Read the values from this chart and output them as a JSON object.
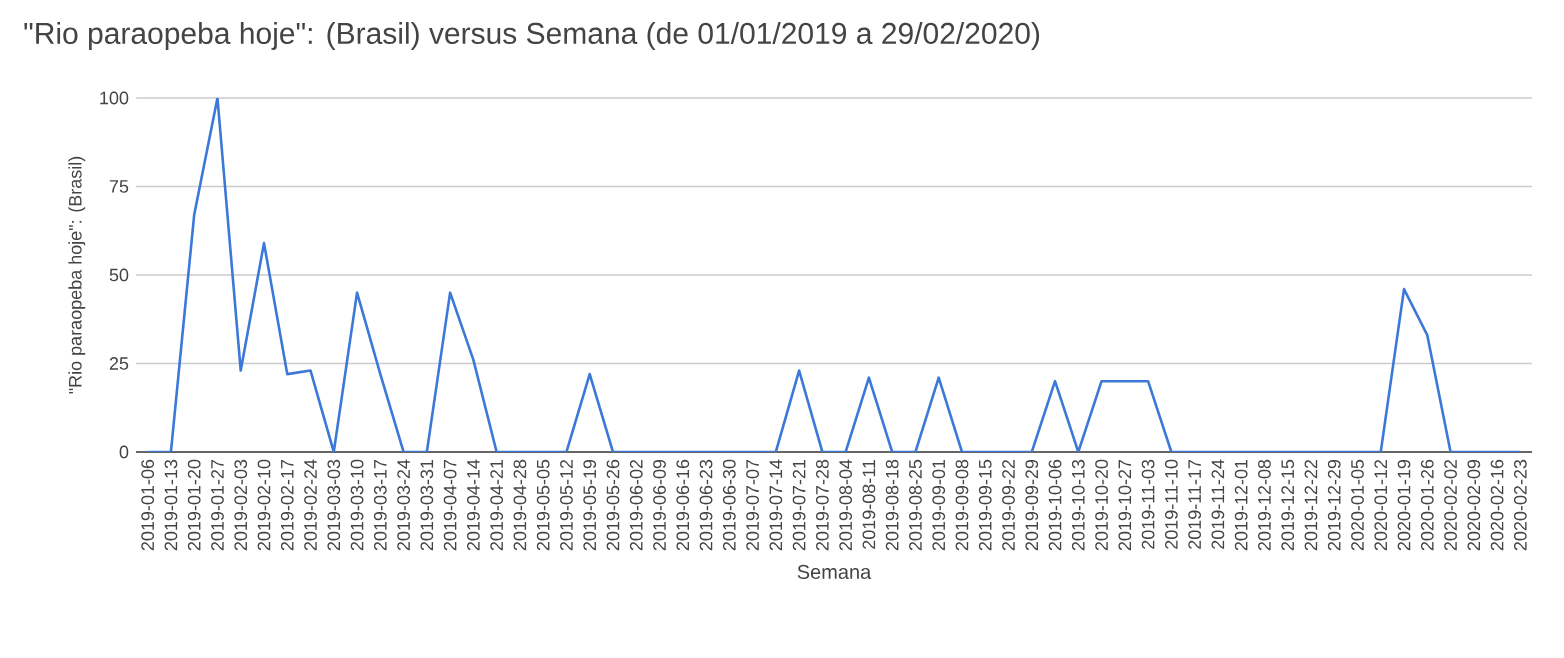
{
  "chart_data": {
    "type": "line",
    "title": "\"Rio paraopeba hoje\": (Brasil) versus Semana (de 01/01/2019 a 29/02/2020)",
    "xlabel": "Semana",
    "ylabel": "\"Rio paraopeba hoje\": (Brasil)",
    "categories": [
      "2019-01-06",
      "2019-01-13",
      "2019-01-20",
      "2019-01-27",
      "2019-02-03",
      "2019-02-10",
      "2019-02-17",
      "2019-02-24",
      "2019-03-03",
      "2019-03-10",
      "2019-03-17",
      "2019-03-24",
      "2019-03-31",
      "2019-04-07",
      "2019-04-14",
      "2019-04-21",
      "2019-04-28",
      "2019-05-05",
      "2019-05-12",
      "2019-05-19",
      "2019-05-26",
      "2019-06-02",
      "2019-06-09",
      "2019-06-16",
      "2019-06-23",
      "2019-06-30",
      "2019-07-07",
      "2019-07-14",
      "2019-07-21",
      "2019-07-28",
      "2019-08-04",
      "2019-08-11",
      "2019-08-18",
      "2019-08-25",
      "2019-09-01",
      "2019-09-08",
      "2019-09-15",
      "2019-09-22",
      "2019-09-29",
      "2019-10-06",
      "2019-10-13",
      "2019-10-20",
      "2019-10-27",
      "2019-11-03",
      "2019-11-10",
      "2019-11-17",
      "2019-11-24",
      "2019-12-01",
      "2019-12-08",
      "2019-12-15",
      "2019-12-22",
      "2019-12-29",
      "2020-01-05",
      "2020-01-12",
      "2020-01-19",
      "2020-01-26",
      "2020-02-02",
      "2020-02-09",
      "2020-02-16",
      "2020-02-23"
    ],
    "series": [
      {
        "color": "#3c78d8",
        "values": [
          0,
          0,
          67,
          100,
          23,
          59,
          22,
          23,
          0,
          45,
          22,
          0,
          0,
          45,
          26,
          0,
          0,
          0,
          0,
          22,
          0,
          0,
          0,
          0,
          0,
          0,
          0,
          0,
          23,
          0,
          0,
          21,
          0,
          0,
          21,
          0,
          0,
          0,
          0,
          20,
          0,
          20,
          20,
          20,
          0,
          0,
          0,
          0,
          0,
          0,
          0,
          0,
          0,
          0,
          46,
          33,
          0,
          0,
          0,
          0
        ]
      }
    ],
    "ylim": [
      0,
      100
    ],
    "yticks": [
      0,
      25,
      50,
      75,
      100
    ],
    "grid": "y",
    "marker": "none",
    "line_style": "solid"
  }
}
